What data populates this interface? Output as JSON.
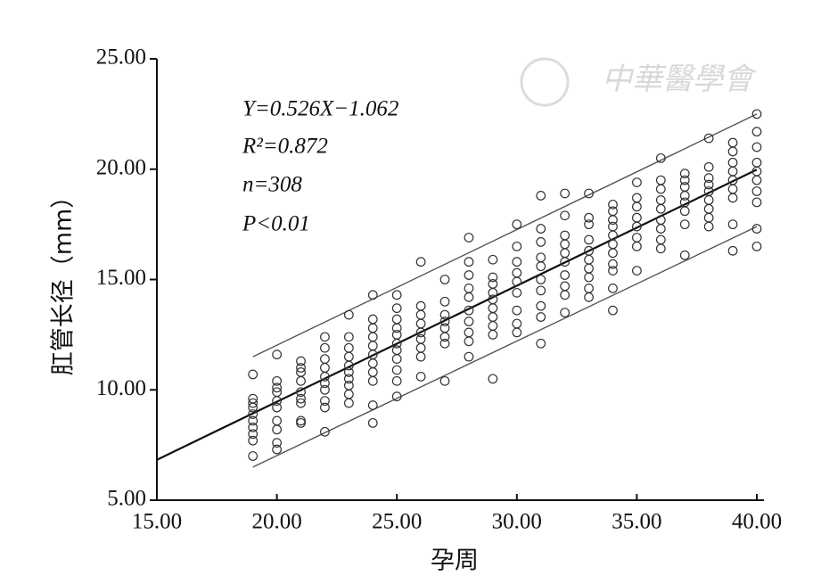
{
  "chart_data": {
    "type": "scatter",
    "x_label": "孕周",
    "y_label": "肛管长径（mm）",
    "annotations": [
      "Y=0.526X−1.062",
      "R²=0.872",
      "n=308",
      "P<0.01"
    ],
    "watermark": "中華醫學會",
    "xlim": [
      15,
      40
    ],
    "ylim": [
      5,
      25
    ],
    "xticks": [
      {
        "value": 15,
        "label": "15.00"
      },
      {
        "value": 20,
        "label": "20.00"
      },
      {
        "value": 25,
        "label": "25.00"
      },
      {
        "value": 30,
        "label": "30.00"
      },
      {
        "value": 35,
        "label": "35.00"
      },
      {
        "value": 40,
        "label": "40.00"
      }
    ],
    "yticks": [
      {
        "value": 5,
        "label": "5.00"
      },
      {
        "value": 10,
        "label": "10.00"
      },
      {
        "value": 15,
        "label": "15.00"
      },
      {
        "value": 20,
        "label": "20.00"
      },
      {
        "value": 25,
        "label": "25.00"
      }
    ],
    "regression": {
      "x": [
        15,
        40
      ],
      "y": [
        6.83,
        19.98
      ],
      "color": "#111111"
    },
    "bands": [
      {
        "x": [
          19,
          40
        ],
        "y": [
          11.5,
          22.5
        ],
        "color": "#555555"
      },
      {
        "x": [
          19,
          40
        ],
        "y": [
          6.5,
          17.4
        ],
        "color": "#555555"
      }
    ],
    "series": [
      {
        "color": "#333333",
        "x": [
          19,
          19,
          19,
          19,
          19,
          19,
          19,
          19,
          19,
          19,
          20,
          20,
          20,
          20,
          20,
          20,
          20,
          20,
          20,
          20,
          21,
          21,
          21,
          21,
          21,
          21,
          21,
          21,
          21,
          22,
          22,
          22,
          22,
          22,
          22,
          22,
          22,
          22,
          22,
          23,
          23,
          23,
          23,
          23,
          23,
          23,
          23,
          23,
          23,
          24,
          24,
          24,
          24,
          24,
          24,
          24,
          24,
          24,
          24,
          24,
          25,
          25,
          25,
          25,
          25,
          25,
          25,
          25,
          25,
          25,
          25,
          26,
          26,
          26,
          26,
          26,
          26,
          26,
          26,
          26,
          27,
          27,
          27,
          27,
          27,
          27,
          27,
          27,
          28,
          28,
          28,
          28,
          28,
          28,
          28,
          28,
          28,
          28,
          29,
          29,
          29,
          29,
          29,
          29,
          29,
          29,
          29,
          29,
          30,
          30,
          30,
          30,
          30,
          30,
          30,
          30,
          30,
          31,
          31,
          31,
          31,
          31,
          31,
          31,
          31,
          31,
          31,
          32,
          32,
          32,
          32,
          32,
          32,
          32,
          32,
          32,
          32,
          33,
          33,
          33,
          33,
          33,
          33,
          33,
          33,
          33,
          33,
          34,
          34,
          34,
          34,
          34,
          34,
          34,
          34,
          34,
          34,
          34,
          35,
          35,
          35,
          35,
          35,
          35,
          35,
          35,
          36,
          36,
          36,
          36,
          36,
          36,
          36,
          36,
          36,
          37,
          37,
          37,
          37,
          37,
          37,
          37,
          37,
          38,
          38,
          38,
          38,
          38,
          38,
          38,
          38,
          38,
          39,
          39,
          39,
          39,
          39,
          39,
          39,
          39,
          39,
          40,
          40,
          40,
          40,
          40,
          40,
          40,
          40,
          40,
          40
        ],
        "values": [
          10.7,
          9.6,
          9.4,
          9.2,
          8.9,
          8.6,
          8.3,
          8.0,
          7.7,
          7.0,
          11.6,
          10.4,
          10.1,
          9.9,
          9.5,
          9.2,
          8.6,
          8.2,
          7.6,
          7.3,
          11.3,
          11.0,
          10.8,
          10.4,
          9.9,
          9.6,
          9.4,
          8.6,
          8.5,
          12.4,
          11.9,
          11.4,
          11.0,
          10.6,
          10.3,
          10.0,
          9.5,
          9.2,
          8.1,
          13.4,
          12.4,
          11.9,
          11.5,
          11.1,
          10.8,
          10.5,
          10.2,
          9.8,
          9.4,
          14.3,
          13.2,
          12.8,
          12.4,
          12.0,
          11.6,
          11.2,
          10.8,
          10.4,
          9.3,
          8.5,
          14.3,
          13.7,
          13.2,
          12.8,
          12.5,
          12.1,
          11.8,
          11.4,
          10.9,
          10.4,
          9.7,
          15.8,
          13.8,
          13.4,
          13.0,
          12.6,
          12.3,
          11.9,
          11.5,
          10.6,
          15.0,
          14.0,
          13.4,
          13.1,
          12.8,
          12.4,
          12.1,
          10.4,
          16.9,
          15.8,
          15.2,
          14.6,
          14.2,
          13.6,
          13.1,
          12.6,
          12.2,
          11.5,
          15.9,
          15.1,
          14.8,
          14.4,
          14.1,
          13.7,
          13.3,
          12.9,
          12.5,
          10.5,
          17.5,
          16.5,
          15.8,
          15.3,
          14.9,
          14.4,
          13.6,
          13.0,
          12.6,
          18.8,
          17.3,
          16.7,
          16.0,
          15.6,
          15.0,
          14.5,
          13.8,
          13.3,
          12.1,
          18.9,
          17.9,
          17.0,
          16.6,
          16.2,
          15.8,
          15.2,
          14.7,
          14.3,
          13.5,
          18.9,
          17.8,
          17.5,
          16.8,
          16.3,
          15.9,
          15.5,
          15.1,
          14.6,
          14.2,
          18.4,
          18.1,
          17.7,
          17.4,
          17.0,
          16.6,
          16.2,
          15.7,
          15.4,
          14.6,
          13.6,
          19.4,
          18.7,
          18.3,
          17.8,
          17.4,
          16.9,
          16.5,
          15.4,
          20.5,
          19.5,
          19.1,
          18.6,
          18.2,
          17.7,
          17.3,
          16.8,
          16.4,
          19.8,
          19.5,
          19.2,
          18.8,
          18.5,
          18.1,
          17.5,
          16.1,
          21.4,
          20.1,
          19.6,
          19.3,
          19.0,
          18.6,
          18.2,
          17.8,
          17.4,
          21.2,
          20.8,
          20.3,
          19.9,
          19.5,
          19.1,
          18.7,
          17.5,
          16.3,
          22.5,
          21.7,
          21.0,
          20.3,
          19.9,
          19.5,
          19.0,
          18.5,
          17.3,
          16.5
        ]
      }
    ]
  }
}
